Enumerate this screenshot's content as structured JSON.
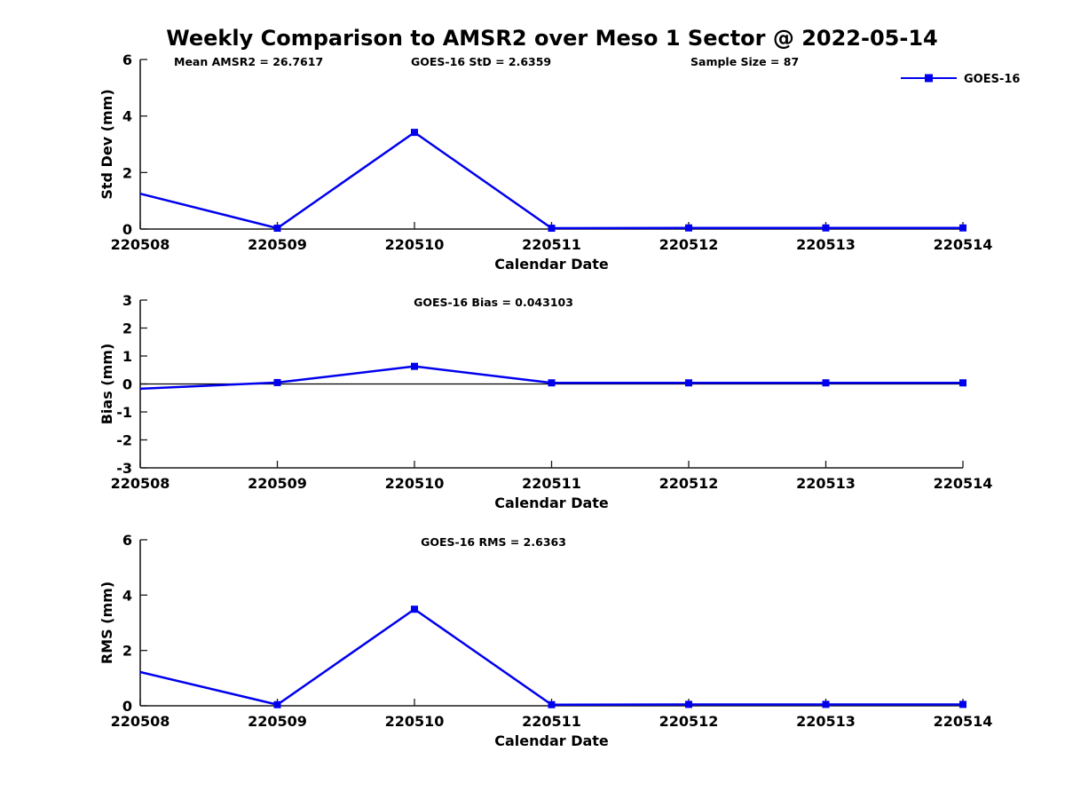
{
  "title": "Weekly Comparison to AMSR2 over Meso 1 Sector @ 2022-05-14",
  "legend": {
    "label": "GOES-16"
  },
  "colors": {
    "series": "#0000EE",
    "axis": "#1a1a1a",
    "text": "#000000",
    "background": "#ffffff"
  },
  "chart_data": [
    {
      "type": "line",
      "ylabel": "Std Dev (mm)",
      "xlabel": "Calendar Date",
      "categories": [
        "220508",
        "220509",
        "220510",
        "220511",
        "220512",
        "220513",
        "220514"
      ],
      "series": [
        {
          "name": "GOES-16",
          "values": [
            1.25,
            0.03,
            3.42,
            0.03,
            0.04,
            0.04,
            0.04
          ]
        }
      ],
      "ylim": [
        0,
        6
      ],
      "yticks": [
        0,
        2,
        4,
        6
      ],
      "zero_line": false,
      "grid": false,
      "legend": true,
      "legend_position": "top-right",
      "title_annotations": [
        "Mean AMSR2 = 26.7617",
        "GOES-16 StD = 2.6359",
        "Sample Size = 87"
      ]
    },
    {
      "type": "line",
      "ylabel": "Bias (mm)",
      "xlabel": "Calendar Date",
      "categories": [
        "220508",
        "220509",
        "220510",
        "220511",
        "220512",
        "220513",
        "220514"
      ],
      "series": [
        {
          "name": "GOES-16",
          "values": [
            -0.17,
            0.05,
            0.63,
            0.04,
            0.04,
            0.04,
            0.04
          ]
        }
      ],
      "ylim": [
        -3,
        3
      ],
      "yticks": [
        3,
        2,
        1,
        0,
        -1,
        -2,
        -3
      ],
      "zero_line": true,
      "grid": false,
      "legend": false,
      "title_annotations": [
        "GOES-16 Bias  = 0.043103"
      ]
    },
    {
      "type": "line",
      "ylabel": "RMS (mm)",
      "xlabel": "Calendar Date",
      "categories": [
        "220508",
        "220509",
        "220510",
        "220511",
        "220512",
        "220513",
        "220514"
      ],
      "series": [
        {
          "name": "GOES-16",
          "values": [
            1.22,
            0.04,
            3.49,
            0.04,
            0.05,
            0.05,
            0.05
          ]
        }
      ],
      "ylim": [
        0,
        6
      ],
      "yticks": [
        0,
        2,
        4,
        6
      ],
      "zero_line": false,
      "grid": false,
      "legend": false,
      "title_annotations": [
        "GOES-16 RMS = 2.6363"
      ]
    }
  ]
}
